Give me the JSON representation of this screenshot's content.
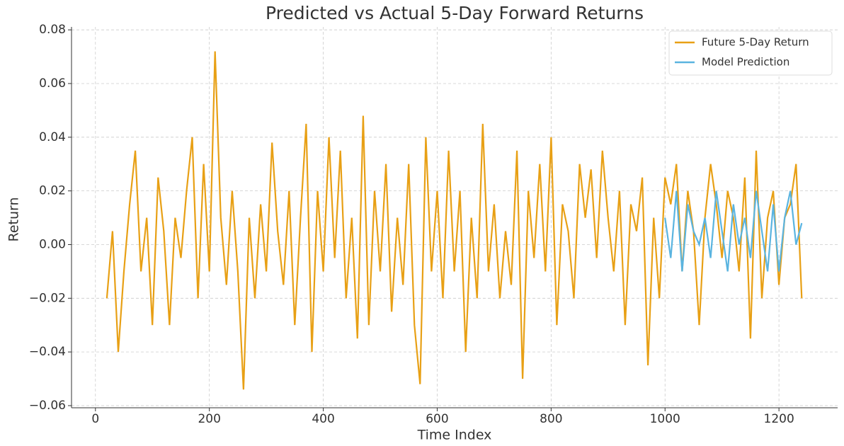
{
  "chart_data": {
    "type": "line",
    "title": "Predicted vs Actual 5-Day Forward Returns",
    "xlabel": "Time Index",
    "ylabel": "Return",
    "xlim": [
      -42,
      1303
    ],
    "ylim": [
      -0.0608,
      0.0811
    ],
    "xticks": [
      0,
      200,
      400,
      600,
      800,
      1000,
      1200
    ],
    "yticks": [
      {
        "value": -0.06,
        "label": "−0.06"
      },
      {
        "value": -0.04,
        "label": "−0.04"
      },
      {
        "value": -0.02,
        "label": "−0.02"
      },
      {
        "value": 0,
        "label": "0.00"
      },
      {
        "value": 0.02,
        "label": "0.02"
      },
      {
        "value": 0.04,
        "label": "0.04"
      },
      {
        "value": 0.06,
        "label": "0.06"
      },
      {
        "value": 0.08,
        "label": "0.08"
      }
    ],
    "grid": true,
    "legend": "upper right",
    "series": [
      {
        "name": "Future 5-Day Return",
        "color": "#e8a015",
        "x": [
          20,
          30,
          40,
          50,
          60,
          70,
          80,
          90,
          100,
          110,
          120,
          130,
          140,
          150,
          160,
          170,
          180,
          190,
          200,
          210,
          220,
          230,
          240,
          250,
          260,
          270,
          280,
          290,
          300,
          310,
          320,
          330,
          340,
          350,
          360,
          370,
          380,
          390,
          400,
          410,
          420,
          430,
          440,
          450,
          460,
          470,
          480,
          490,
          500,
          510,
          520,
          530,
          540,
          550,
          560,
          570,
          580,
          590,
          600,
          610,
          620,
          630,
          640,
          650,
          660,
          670,
          680,
          690,
          700,
          710,
          720,
          730,
          740,
          750,
          760,
          770,
          780,
          790,
          800,
          810,
          820,
          830,
          840,
          850,
          860,
          870,
          880,
          890,
          900,
          910,
          920,
          930,
          940,
          950,
          960,
          970,
          980,
          990,
          1000,
          1010,
          1020,
          1030,
          1040,
          1050,
          1060,
          1070,
          1080,
          1090,
          1100,
          1110,
          1120,
          1130,
          1140,
          1150,
          1160,
          1170,
          1180,
          1190,
          1200,
          1210,
          1220,
          1230,
          1240
        ],
        "values": [
          -0.02,
          0.005,
          -0.04,
          -0.01,
          0.015,
          0.035,
          -0.01,
          0.01,
          -0.03,
          0.025,
          0.005,
          -0.03,
          0.01,
          -0.005,
          0.02,
          0.04,
          -0.02,
          0.03,
          -0.01,
          0.072,
          0.01,
          -0.015,
          0.02,
          -0.01,
          -0.054,
          0.01,
          -0.02,
          0.015,
          -0.01,
          0.038,
          0.005,
          -0.015,
          0.02,
          -0.03,
          0.01,
          0.045,
          -0.04,
          0.02,
          -0.01,
          0.04,
          -0.005,
          0.035,
          -0.02,
          0.01,
          -0.035,
          0.048,
          -0.03,
          0.02,
          -0.01,
          0.03,
          -0.025,
          0.01,
          -0.015,
          0.03,
          -0.03,
          -0.052,
          0.04,
          -0.01,
          0.02,
          -0.02,
          0.035,
          -0.01,
          0.02,
          -0.04,
          0.01,
          -0.02,
          0.045,
          -0.01,
          0.015,
          -0.02,
          0.005,
          -0.015,
          0.035,
          -0.05,
          0.02,
          -0.005,
          0.03,
          -0.01,
          0.04,
          -0.03,
          0.015,
          0.005,
          -0.02,
          0.03,
          0.01,
          0.028,
          -0.005,
          0.035,
          0.01,
          -0.01,
          0.02,
          -0.03,
          0.015,
          0.005,
          0.025,
          -0.045,
          0.01,
          -0.02,
          0.025,
          0.015,
          0.03,
          -0.01,
          0.02,
          0.005,
          -0.03,
          0.01,
          0.03,
          0.015,
          -0.005,
          0.02,
          0.01,
          -0.01,
          0.025,
          -0.035,
          0.035,
          -0.02,
          0.01,
          0.02,
          -0.015,
          0.01,
          0.015,
          0.03,
          -0.02
        ]
      },
      {
        "name": "Model Prediction",
        "color": "#5ab4e0",
        "x": [
          1000,
          1010,
          1020,
          1030,
          1040,
          1050,
          1060,
          1070,
          1080,
          1090,
          1100,
          1110,
          1120,
          1130,
          1140,
          1150,
          1160,
          1170,
          1180,
          1190,
          1200,
          1210,
          1220,
          1230,
          1240
        ],
        "values": [
          0.01,
          -0.005,
          0.02,
          -0.01,
          0.015,
          0.005,
          0.0,
          0.01,
          -0.005,
          0.02,
          0.005,
          -0.01,
          0.015,
          0.0,
          0.01,
          -0.005,
          0.02,
          0.005,
          -0.01,
          0.015,
          -0.01,
          0.01,
          0.02,
          0.0,
          0.008
        ]
      }
    ]
  }
}
